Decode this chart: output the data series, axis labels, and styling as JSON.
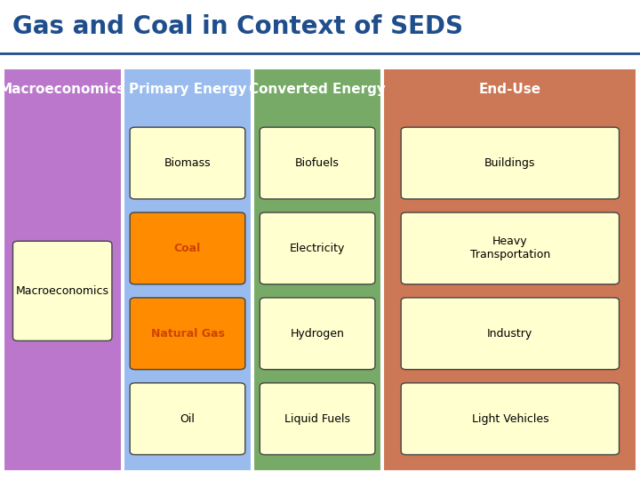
{
  "title": "Gas and Coal in Context of SEDS",
  "title_color": "#1F4E8C",
  "title_fontsize": 20,
  "separator_color": "#1F4E8C",
  "columns": [
    {
      "header": "Macroeconomics",
      "bg_color": "#BB77CC",
      "items": [
        {
          "label": "Macroeconomics",
          "box_color": "#FFFFD0",
          "orange": false
        }
      ]
    },
    {
      "header": "Primary Energy",
      "bg_color": "#99BBEE",
      "items": [
        {
          "label": "Biomass",
          "box_color": "#FFFFD0",
          "orange": false
        },
        {
          "label": "Coal",
          "box_color": "#FF8C00",
          "orange": true
        },
        {
          "label": "Natural Gas",
          "box_color": "#FF8C00",
          "orange": true
        },
        {
          "label": "Oil",
          "box_color": "#FFFFD0",
          "orange": false
        }
      ]
    },
    {
      "header": "Converted Energy",
      "bg_color": "#77AA66",
      "items": [
        {
          "label": "Biofuels",
          "box_color": "#FFFFD0",
          "orange": false
        },
        {
          "label": "Electricity",
          "box_color": "#FFFFD0",
          "orange": false
        },
        {
          "label": "Hydrogen",
          "box_color": "#FFFFD0",
          "orange": false
        },
        {
          "label": "Liquid Fuels",
          "box_color": "#FFFFD0",
          "orange": false
        }
      ]
    },
    {
      "header": "End-Use",
      "bg_color": "#CC7755",
      "items": [
        {
          "label": "Buildings",
          "box_color": "#FFFFD0",
          "orange": false
        },
        {
          "label": "Heavy\nTransportation",
          "box_color": "#FFFFD0",
          "orange": false
        },
        {
          "label": "Industry",
          "box_color": "#FFFFD0",
          "orange": false
        },
        {
          "label": "Light Vehicles",
          "box_color": "#FFFFD0",
          "orange": false
        }
      ]
    }
  ],
  "col_header_fontsize": 11,
  "col_header_color": "white",
  "item_fontsize": 9,
  "item_text_color": "black",
  "orange_text_color": "#CC4400"
}
